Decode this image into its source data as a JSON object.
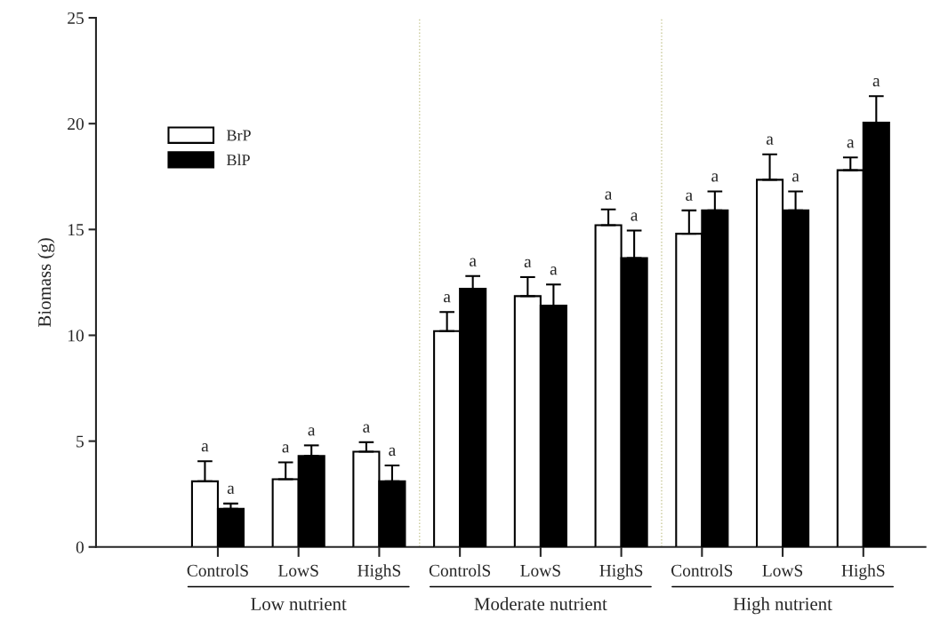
{
  "chart_data": {
    "type": "bar",
    "ylabel": "Biomass (g)",
    "categories": [
      "ControlS",
      "LowS",
      "HighS",
      "ControlS",
      "LowS",
      "HighS",
      "ControlS",
      "LowS",
      "HighS"
    ],
    "series": [
      {
        "name": "BrP",
        "color": "#ffffff",
        "values": [
          3.1,
          3.2,
          4.5,
          10.2,
          11.85,
          15.2,
          14.8,
          17.35,
          17.8
        ],
        "errors": [
          0.95,
          0.8,
          0.45,
          0.9,
          0.9,
          0.75,
          1.1,
          1.2,
          0.6
        ],
        "value_labels": [
          "a",
          "a",
          "a",
          "a",
          "a",
          "a",
          "a",
          "a",
          "a"
        ]
      },
      {
        "name": "BlP",
        "color": "#000000",
        "values": [
          1.8,
          4.3,
          3.1,
          12.2,
          11.4,
          13.65,
          15.9,
          15.9,
          20.05
        ],
        "errors": [
          0.25,
          0.5,
          0.75,
          0.6,
          1.0,
          1.3,
          0.9,
          0.9,
          1.25
        ],
        "value_labels": [
          "a",
          "a",
          "a",
          "a",
          "a",
          "a",
          "a",
          "a",
          "a"
        ]
      }
    ],
    "annotations": [
      "Low nutrient",
      "Moderate nutrient",
      "High nutrient"
    ],
    "ylim": [
      0,
      25
    ],
    "yticks": [
      0,
      5,
      10,
      15,
      20,
      25
    ],
    "grid": false,
    "legend": "top left"
  }
}
